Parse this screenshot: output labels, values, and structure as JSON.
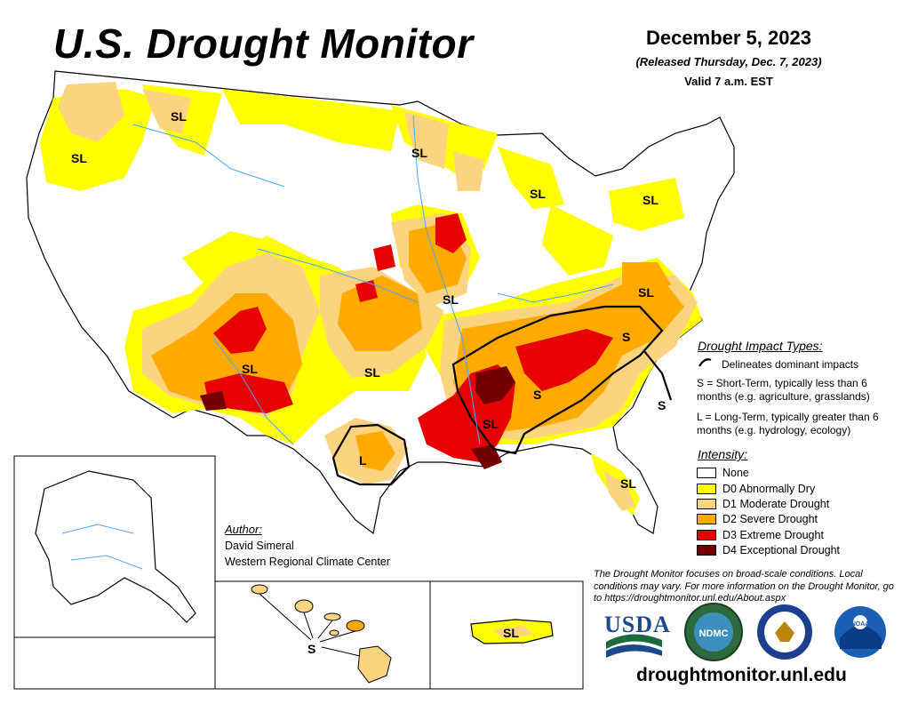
{
  "header": {
    "title": "U.S. Drought Monitor",
    "date": "December 5, 2023",
    "released": "(Released Thursday, Dec. 7, 2023)",
    "valid": "Valid 7 a.m. EST"
  },
  "impact_types": {
    "heading": "Drought Impact Types:",
    "delineates": "Delineates dominant impacts",
    "short_term": "S = Short-Term, typically less than 6 months (e.g. agriculture, grasslands)",
    "long_term": "L = Long-Term, typically greater than 6 months (e.g. hydrology, ecology)"
  },
  "intensity": {
    "heading": "Intensity:",
    "levels": [
      {
        "label": "None",
        "color": "#ffffff"
      },
      {
        "label": "D0 Abnormally Dry",
        "color": "#ffff00"
      },
      {
        "label": "D1 Moderate Drought",
        "color": "#fcd37f"
      },
      {
        "label": "D2 Severe Drought",
        "color": "#ffaa00"
      },
      {
        "label": "D3 Extreme Drought",
        "color": "#e60000"
      },
      {
        "label": "D4 Exceptional Drought",
        "color": "#730000"
      }
    ]
  },
  "author": {
    "heading": "Author:",
    "name": "David Simeral",
    "organization": "Western Regional Climate Center"
  },
  "note": "The Drought Monitor focuses on broad-scale conditions. Local conditions may vary. For more information on the Drought Monitor, go to https://droughtmonitor.unl.edu/About.aspx",
  "website": "droughtmonitor.unl.edu",
  "logos": {
    "usda": "USDA",
    "ndmc": "NDMC",
    "noaa": "NOAA"
  },
  "map_labels": {
    "sl": "SL",
    "s": "S",
    "l": "L"
  }
}
